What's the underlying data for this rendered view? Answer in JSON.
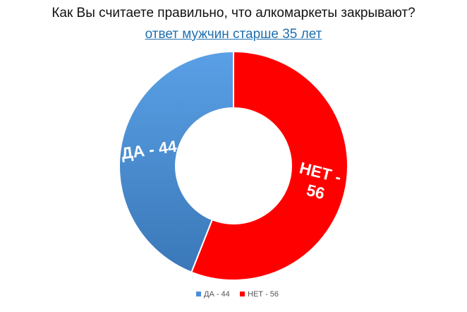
{
  "chart_data": {
    "type": "pie",
    "title": "Как Вы считаете правильно, что алкомаркеты закрывают?",
    "subtitle": "ответ мужчин старше 35 лет",
    "slices": [
      {
        "name": "НЕТ - 56",
        "value": 56,
        "color": "#ff0000",
        "label_lines": [
          "НЕТ -",
          "56"
        ]
      },
      {
        "name": "ДА - 44",
        "value": 44,
        "color": "#4a8fd6",
        "label_lines": [
          "ДА - 44"
        ]
      }
    ],
    "legend": {
      "position": "bottom",
      "entries": [
        "ДА - 44",
        "НЕТ - 56"
      ]
    }
  }
}
